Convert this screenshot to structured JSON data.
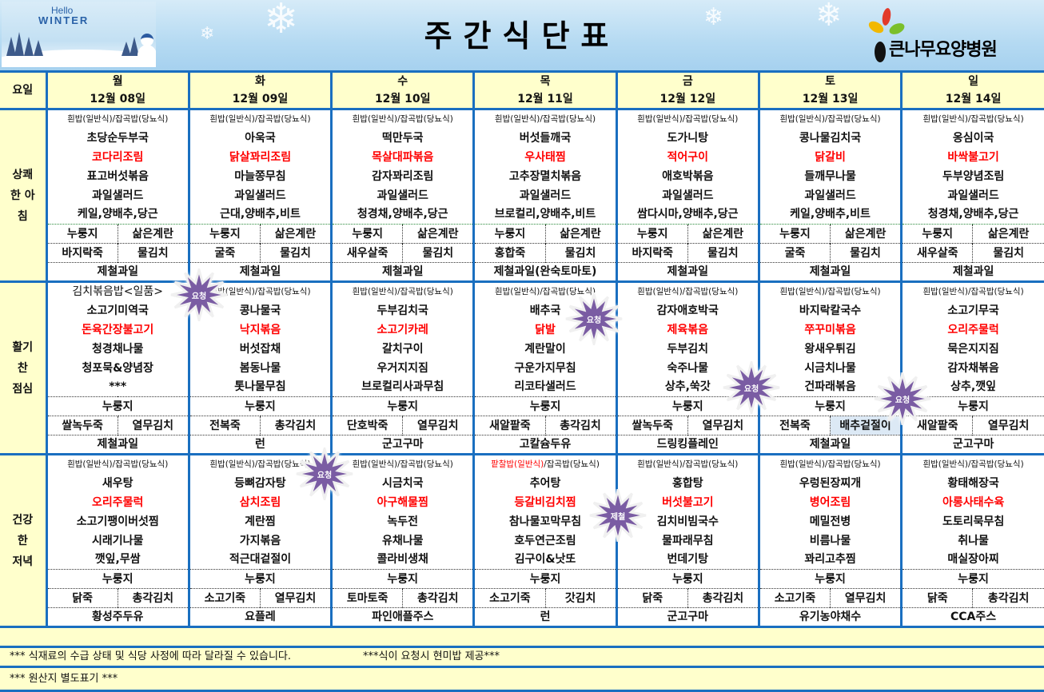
{
  "banner": {
    "title": "주간식단표",
    "winter_hello": "Hello",
    "winter_word": "WINTER",
    "logo_name": "큰나무요양병원"
  },
  "day_label": "요일",
  "days": [
    {
      "name": "월",
      "date": "12월 08일"
    },
    {
      "name": "화",
      "date": "12월 09일"
    },
    {
      "name": "수",
      "date": "12월 10일"
    },
    {
      "name": "목",
      "date": "12월 11일"
    },
    {
      "name": "금",
      "date": "12월 12일"
    },
    {
      "name": "토",
      "date": "12월 13일"
    },
    {
      "name": "일",
      "date": "12월 14일"
    }
  ],
  "meals": [
    {
      "label": "상쾌\n한 아\n침",
      "type": "breakfast",
      "days": [
        {
          "header": "흰밥(일반식)/잡곡밥(당뇨식)",
          "dishes": [
            "초당순두부국",
            "코다리조림",
            "표고버섯볶음",
            "과일샐러드",
            "케일,양배추,당근"
          ],
          "extra1": [
            "누룽지",
            "삶은계란"
          ],
          "extra2": [
            "바지락죽",
            "물김치"
          ],
          "dessert": "제철과일"
        },
        {
          "header": "흰밥(일반식)/잡곡밥(당뇨식)",
          "dishes": [
            "아욱국",
            "닭살꽈리조림",
            "마늘쫑무침",
            "과일샐러드",
            "근대,양배추,비트"
          ],
          "extra1": [
            "누룽지",
            "삶은계란"
          ],
          "extra2": [
            "굴죽",
            "물김치"
          ],
          "dessert": "제철과일"
        },
        {
          "header": "흰밥(일반식)/잡곡밥(당뇨식)",
          "dishes": [
            "떡만두국",
            "목살대파볶음",
            "감자꽈리조림",
            "과일샐러드",
            "청경채,양배추,당근"
          ],
          "extra1": [
            "누룽지",
            "삶은계란"
          ],
          "extra2": [
            "새우살죽",
            "물김치"
          ],
          "dessert": "제철과일"
        },
        {
          "header": "흰밥(일반식)/잡곡밥(당뇨식)",
          "dishes": [
            "버섯들깨국",
            "우사태찜",
            "고추장멸치볶음",
            "과일샐러드",
            "브로컬리,양배추,비트"
          ],
          "extra1": [
            "누룽지",
            "삶은계란"
          ],
          "extra2": [
            "홍합죽",
            "물김치"
          ],
          "dessert": "제철과일(완숙토마토)"
        },
        {
          "header": "흰밥(일반식)/잡곡밥(당뇨식)",
          "dishes": [
            "도가니탕",
            "적어구이",
            "애호박볶음",
            "과일샐러드",
            "쌈다시마,양배추,당근"
          ],
          "extra1": [
            "누룽지",
            "삶은계란"
          ],
          "extra2": [
            "바지락죽",
            "물김치"
          ],
          "dessert": "제철과일"
        },
        {
          "header": "흰밥(일반식)/잡곡밥(당뇨식)",
          "dishes": [
            "콩나물김치국",
            "닭갈비",
            "들깨무나물",
            "과일샐러드",
            "케일,양배추,비트"
          ],
          "extra1": [
            "누룽지",
            "삶은계란"
          ],
          "extra2": [
            "굴죽",
            "물김치"
          ],
          "dessert": "제철과일"
        },
        {
          "header": "흰밥(일반식)/잡곡밥(당뇨식)",
          "dishes": [
            "옹심이국",
            "바싹불고기",
            "두부양념조림",
            "과일샐러드",
            "청경채,양배추,당근"
          ],
          "extra1": [
            "누룽지",
            "삶은계란"
          ],
          "extra2": [
            "새우살죽",
            "물김치"
          ],
          "dessert": "제철과일"
        }
      ]
    },
    {
      "label": "활기\n찬\n점심",
      "type": "lunch",
      "days": [
        {
          "header": "김치볶음밥<일품>",
          "header_large": true,
          "dishes": [
            "소고기미역국",
            "돈육간장불고기",
            "청경채나물",
            "청포묵&양념장",
            "***"
          ],
          "extra1": [
            "누룽지"
          ],
          "extra2": [
            "쌀녹두죽",
            "열무김치"
          ],
          "dessert": "제철과일"
        },
        {
          "header": "흰밥(일반식)/잡곡밥(당뇨식)",
          "dishes": [
            "콩나물국",
            "낙지볶음",
            "버섯잡채",
            "봄동나물",
            "톳나물무침"
          ],
          "extra1": [
            "누룽지"
          ],
          "extra2": [
            "전복죽",
            "총각김치"
          ],
          "dessert": "런"
        },
        {
          "header": "흰밥(일반식)/잡곡밥(당뇨식)",
          "dishes": [
            "두부김치국",
            "소고기카레",
            "갈치구이",
            "우거지지짐",
            "브로컬리사과무침"
          ],
          "extra1": [
            "누룽지"
          ],
          "extra2": [
            "단호박죽",
            "열무김치"
          ],
          "dessert": "군고구마"
        },
        {
          "header": "흰밥(일반식)/잡곡밥(당뇨식)",
          "dishes": [
            "배추국",
            "닭발",
            "계란말이",
            "구운가지무침",
            "리코타샐러드"
          ],
          "extra1": [
            "누룽지"
          ],
          "extra2": [
            "새알팥죽",
            "총각김치"
          ],
          "dessert": "고칼슘두유"
        },
        {
          "header": "흰밥(일반식)/잡곡밥(당뇨식)",
          "dishes": [
            "감자애호박국",
            "제육볶음",
            "두부김치",
            "숙주나물",
            "상추,쑥갓"
          ],
          "extra1": [
            "누룽지"
          ],
          "extra2": [
            "쌀녹두죽",
            "열무김치"
          ],
          "dessert": "드링킹플레인"
        },
        {
          "header": "흰밥(일반식)/잡곡밥(당뇨식)",
          "dishes": [
            "바지락칼국수",
            "쭈꾸미볶음",
            "왕새우튀김",
            "시금치나물",
            "건파래볶음"
          ],
          "extra1": [
            "누룽지"
          ],
          "extra2": [
            "전복죽",
            "배추겉절이"
          ],
          "extra2_selected": true,
          "dessert": "제철과일"
        },
        {
          "header": "흰밥(일반식)/잡곡밥(당뇨식)",
          "dishes": [
            "소고기무국",
            "오리주물럭",
            "묵은지지짐",
            "감자채볶음",
            "상추,깻잎"
          ],
          "extra1": [
            "누룽지"
          ],
          "extra2": [
            "새알팥죽",
            "열무김치"
          ],
          "dessert": "군고구마"
        }
      ]
    },
    {
      "label": "건강\n한\n저녁",
      "type": "dinner",
      "days": [
        {
          "header": "흰밥(일반식)/잡곡밥(당뇨식)",
          "dishes": [
            "새우탕",
            "오리주물럭",
            "소고기팽이버섯찜",
            "시래기나물",
            "깻잎,무쌈"
          ],
          "extra1": [
            "누룽지"
          ],
          "extra2": [
            "닭죽",
            "총각김치"
          ],
          "dessert": "황성주두유"
        },
        {
          "header": "흰밥(일반식)/잡곡밥(당뇨식)",
          "dishes": [
            "등뼈감자탕",
            "삼치조림",
            "계란찜",
            "가지볶음",
            "적근대겉절이"
          ],
          "extra1": [
            "누룽지"
          ],
          "extra2": [
            "소고기죽",
            "열무김치"
          ],
          "dessert": "요플레"
        },
        {
          "header": "흰밥(일반식)/잡곡밥(당뇨식)",
          "dishes": [
            "시금치국",
            "아구해물찜",
            "녹두전",
            "유채나물",
            "콜라비생채"
          ],
          "extra1": [
            "누룽지"
          ],
          "extra2": [
            "토마토죽",
            "총각김치"
          ],
          "dessert": "파인애플주스"
        },
        {
          "header_red": "팥찰밥(일반식)",
          "header": "/잡곡밥(당뇨식)",
          "dishes": [
            "추어탕",
            "등갈비김치찜",
            "참나물꼬막무침",
            "호두연근조림",
            "김구이&낫또"
          ],
          "extra1": [
            "누룽지"
          ],
          "extra2": [
            "소고기죽",
            "갓김치"
          ],
          "dessert": "런"
        },
        {
          "header": "흰밥(일반식)/잡곡밥(당뇨식)",
          "dishes": [
            "홍합탕",
            "버섯불고기",
            "김치비빔국수",
            "물파래무침",
            "번데기탕"
          ],
          "extra1": [
            "누룽지"
          ],
          "extra2": [
            "닭죽",
            "총각김치"
          ],
          "dessert": "군고구마"
        },
        {
          "header": "흰밥(일반식)/잡곡밥(당뇨식)",
          "dishes": [
            "우렁된장찌개",
            "병어조림",
            "메밀전병",
            "비름나물",
            "꽈리고추찜"
          ],
          "extra1": [
            "누룽지"
          ],
          "extra2": [
            "소고기죽",
            "열무김치"
          ],
          "dessert": "유기농야채수"
        },
        {
          "header": "흰밥(일반식)/잡곡밥(당뇨식)",
          "dishes": [
            "황태해장국",
            "아롱사태수육",
            "도토리묵무침",
            "취나물",
            "매실장아찌"
          ],
          "extra1": [
            "누룽지"
          ],
          "extra2": [
            "닭죽",
            "총각김치"
          ],
          "dessert": "CCA주스"
        }
      ]
    }
  ],
  "footer": {
    "note1": "***  식재료의 수급 상태 및 식당 사정에 따라 달라질 수 있습니다.",
    "note1b": "***식이 요청시 현미밥 제공***",
    "note2": "***  원산지 별도표기 ***"
  },
  "bursts": [
    "요청",
    "요청",
    "요청",
    "요청",
    "요청",
    "제철"
  ],
  "colors": {
    "accent_blue": "#1a6fc0",
    "highlight_red": "#ff0000",
    "cell_yellow": "#ffffcc",
    "burst_purple": "#7a5ca3"
  }
}
